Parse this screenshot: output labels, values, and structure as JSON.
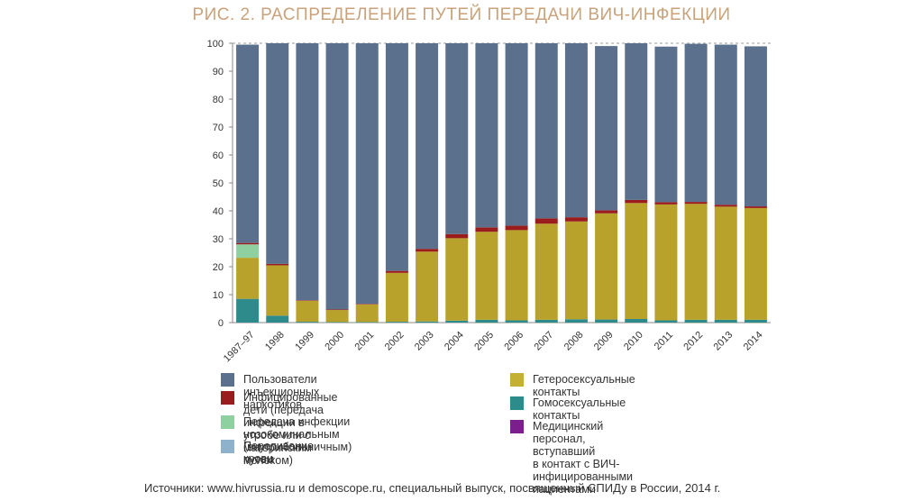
{
  "chart_data": {
    "type": "bar",
    "stacked": true,
    "title": "РИС. 2. РАСПРЕДЕЛЕНИЕ ПУТЕЙ ПЕРЕДАЧИ ВИЧ-ИНФЕКЦИИ",
    "xlabel": "",
    "ylabel": "",
    "ylim": [
      0,
      100
    ],
    "yticks": [
      0,
      10,
      20,
      30,
      40,
      50,
      60,
      70,
      80,
      90,
      100
    ],
    "grid": "dashed top line at 100",
    "categories": [
      "1987–97",
      "1998",
      "1999",
      "2000",
      "2001",
      "2002",
      "2003",
      "2004",
      "2005",
      "2006",
      "2007",
      "2008",
      "2009",
      "2010",
      "2011",
      "2012",
      "2013",
      "2014"
    ],
    "series": [
      {
        "name": "Гомосексуальные контакты",
        "color": "#2e8b8b",
        "values": [
          8.5,
          2.5,
          0.3,
          0.2,
          0.2,
          0.3,
          0.4,
          0.7,
          1.0,
          0.8,
          1.0,
          1.2,
          1.1,
          1.3,
          0.8,
          1.0,
          1.0,
          1.0
        ]
      },
      {
        "name": "Гетеросексуальные контакты",
        "color": "#b8a22b",
        "values": [
          14.7,
          18.0,
          7.5,
          4.3,
          6.3,
          17.5,
          25.0,
          29.5,
          31.5,
          32.3,
          34.4,
          35.0,
          38.0,
          41.5,
          41.5,
          41.5,
          40.5,
          40.0
        ]
      },
      {
        "name": "Передача инфекции нозокоминальным (внутрибольничным) путем",
        "color": "#8fd0a0",
        "values": [
          4.8,
          0,
          0,
          0,
          0,
          0,
          0,
          0,
          0,
          0,
          0,
          0,
          0,
          0,
          0,
          0,
          0,
          0
        ]
      },
      {
        "name": "Инфицированные дети (передача инфекции в утробе или с материнским молоком)",
        "color": "#9b1c1c",
        "values": [
          0.5,
          0.5,
          0.2,
          0.2,
          0.2,
          0.7,
          1.0,
          1.5,
          1.6,
          1.6,
          1.9,
          1.5,
          1.1,
          1.1,
          0.8,
          0.7,
          0.7,
          0.6
        ]
      },
      {
        "name": "Пользователи инъекционных наркотиков",
        "color": "#5a708c",
        "values": [
          71.0,
          79.0,
          92.0,
          95.3,
          93.3,
          81.5,
          73.6,
          68.3,
          65.9,
          65.3,
          62.7,
          62.3,
          58.8,
          56.1,
          55.7,
          56.6,
          57.3,
          57.3
        ]
      }
    ]
  },
  "legend": {
    "items": [
      {
        "label": "Пользователи инъекционных наркотиков",
        "color": "#5a708c"
      },
      {
        "label": "Инфицированные дети (передача\nинфекции в утробе или с материнским молоком)",
        "color": "#9b1c1c"
      },
      {
        "label": "Передача инфекции нозокоминальным\n(внутрибольничным) путем",
        "color": "#8fd0a0"
      },
      {
        "label": "Переливание крови",
        "color": "#8fb2cc"
      },
      {
        "label": "Гетеросексуальные контакты",
        "color": "#c4b033"
      },
      {
        "label": "Гомосексуальные контакты",
        "color": "#2e8b8b"
      },
      {
        "label": "Медицинский персонал, вступавший\nв контакт с ВИЧ-инфицированными пациентами",
        "color": "#7b1f8c"
      }
    ]
  },
  "source_note": "Источники: www.hivrussia.ru и demoscope.ru, специальный выпуск, посвященный СПИДу в России, 2014 г."
}
